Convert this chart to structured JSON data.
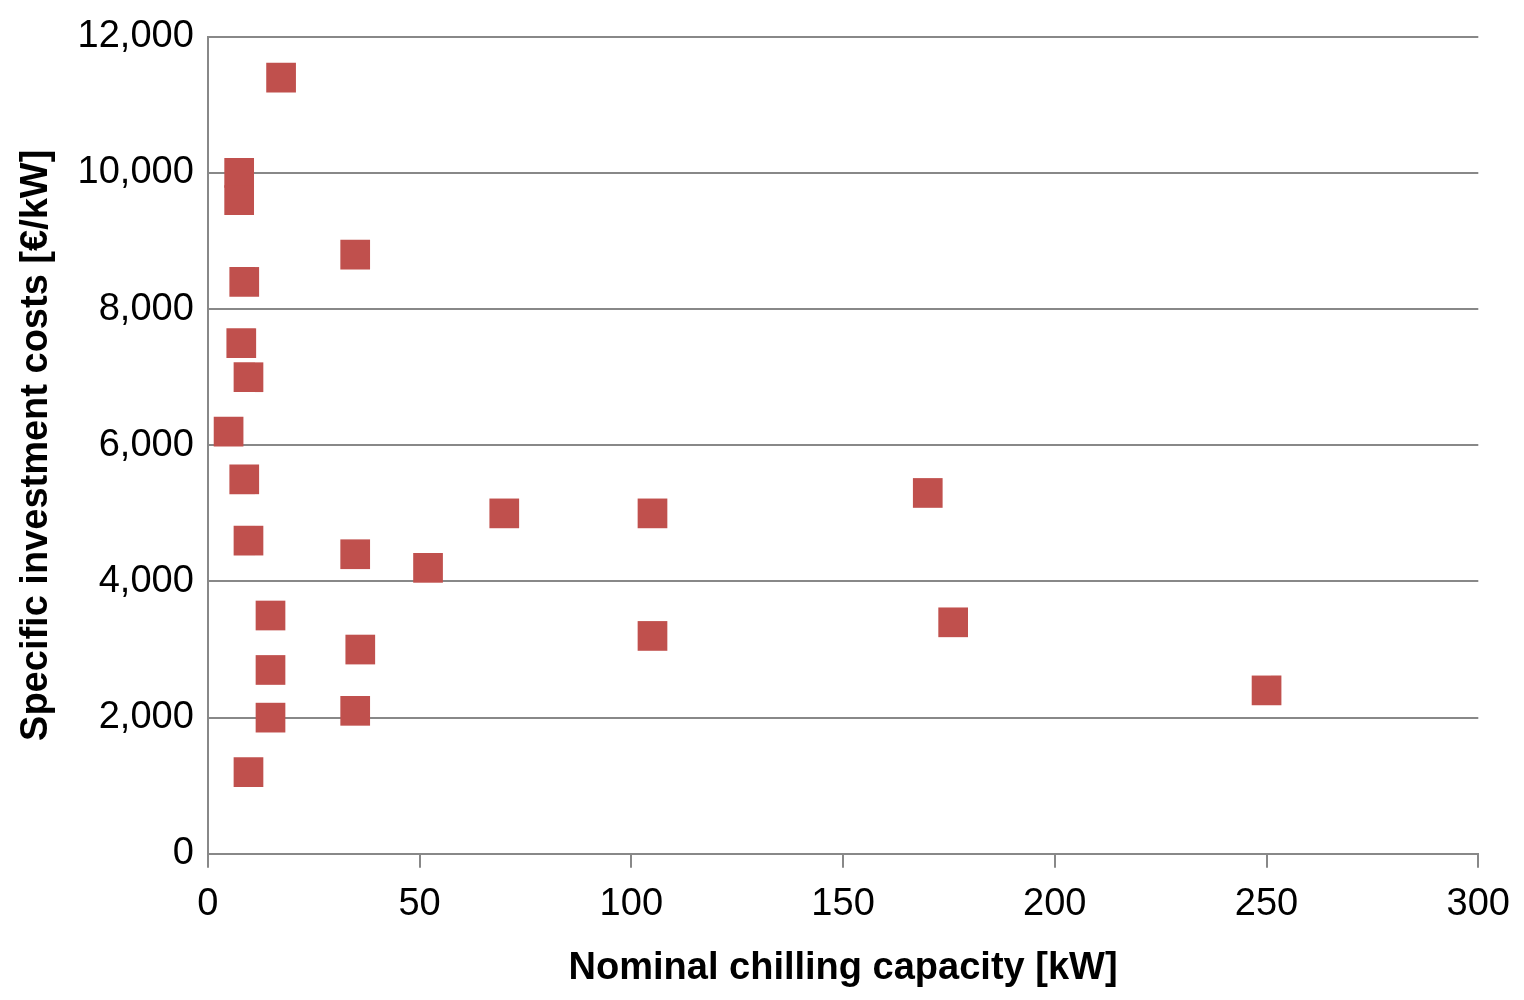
{
  "chart_data": {
    "type": "scatter",
    "xlabel": "Nominal chilling capacity [kW]",
    "ylabel": "Specific investment costs [€/kW]",
    "x": [
      17.3,
      7.4,
      7.4,
      34.8,
      8.6,
      7.9,
      9.6,
      4.9,
      8.6,
      170,
      70,
      105,
      9.6,
      34.8,
      52,
      14.8,
      176,
      36,
      105,
      14.8,
      250,
      34.8,
      14.8,
      9.6
    ],
    "series": [
      {
        "color": "#c0504d",
        "values": [
          11400,
          10000,
          9600,
          8800,
          8400,
          7500,
          7000,
          6200,
          5500,
          5300,
          5000,
          5000,
          4600,
          4400,
          4200,
          3500,
          3400,
          3000,
          3200,
          2700,
          2400,
          2100,
          2000,
          1200
        ]
      }
    ],
    "xlim": [
      0,
      300
    ],
    "xticks": [
      0,
      50,
      100,
      150,
      200,
      250,
      300
    ],
    "ylim": [
      0,
      12000
    ],
    "yticks": [
      0,
      {
        "value": 2000,
        "label": "2,000"
      },
      {
        "value": 4000,
        "label": "4,000"
      },
      {
        "value": 6000,
        "label": "6,000"
      },
      {
        "value": 8000,
        "label": "8,000"
      },
      {
        "value": 10000,
        "label": "10,000"
      },
      {
        "value": 12000,
        "label": "12,000"
      }
    ],
    "grid": "y",
    "marker": "square",
    "legend": false
  }
}
